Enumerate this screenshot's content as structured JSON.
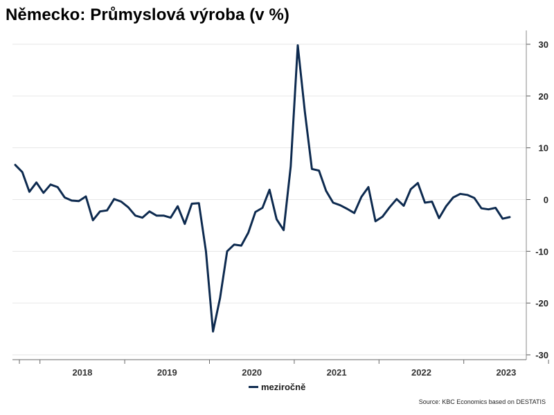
{
  "header": {
    "title": "Německo: Průmyslová výroba (v %)"
  },
  "legend": {
    "label": "meziročně"
  },
  "footer": {
    "source": "Source: KBC Economics based on DESTATIS"
  },
  "chart_data": {
    "type": "line",
    "title": "Německo: Průmyslová výroba (v %)",
    "xlabel": "",
    "ylabel": "",
    "ylim": [
      -30,
      30
    ],
    "yticks": [
      -30,
      -20,
      -10,
      0,
      10,
      20,
      30
    ],
    "xticks": [
      "2018",
      "2019",
      "2020",
      "2021",
      "2022",
      "2023"
    ],
    "grid": true,
    "y_axis_side": "right",
    "legend_position": "bottom",
    "series": [
      {
        "name": "meziročně",
        "color": "#0d2a4f",
        "start": "2017-09",
        "frequency": "monthly",
        "values": [
          6.7,
          5.3,
          1.5,
          3.3,
          1.3,
          2.9,
          2.4,
          0.4,
          -0.2,
          -0.3,
          0.6,
          -4.0,
          -2.3,
          -2.1,
          0.1,
          -0.4,
          -1.5,
          -3.1,
          -3.5,
          -2.3,
          -3.1,
          -3.1,
          -3.5,
          -1.3,
          -4.7,
          -0.8,
          -0.7,
          -10.0,
          -25.5,
          -19.0,
          -10.0,
          -8.7,
          -8.9,
          -6.4,
          -2.4,
          -1.6,
          1.9,
          -3.8,
          -5.9,
          6.4,
          29.8,
          17.0,
          5.9,
          5.6,
          1.7,
          -0.6,
          -1.1,
          -1.8,
          -2.6,
          0.5,
          2.4,
          -4.2,
          -3.3,
          -1.5,
          0.1,
          -1.2,
          2.0,
          3.2,
          -0.6,
          -0.4,
          -3.6,
          -1.3,
          0.4,
          1.1,
          0.9,
          0.3,
          -1.7,
          -1.9,
          -1.6,
          -3.7,
          -3.4
        ]
      }
    ]
  }
}
